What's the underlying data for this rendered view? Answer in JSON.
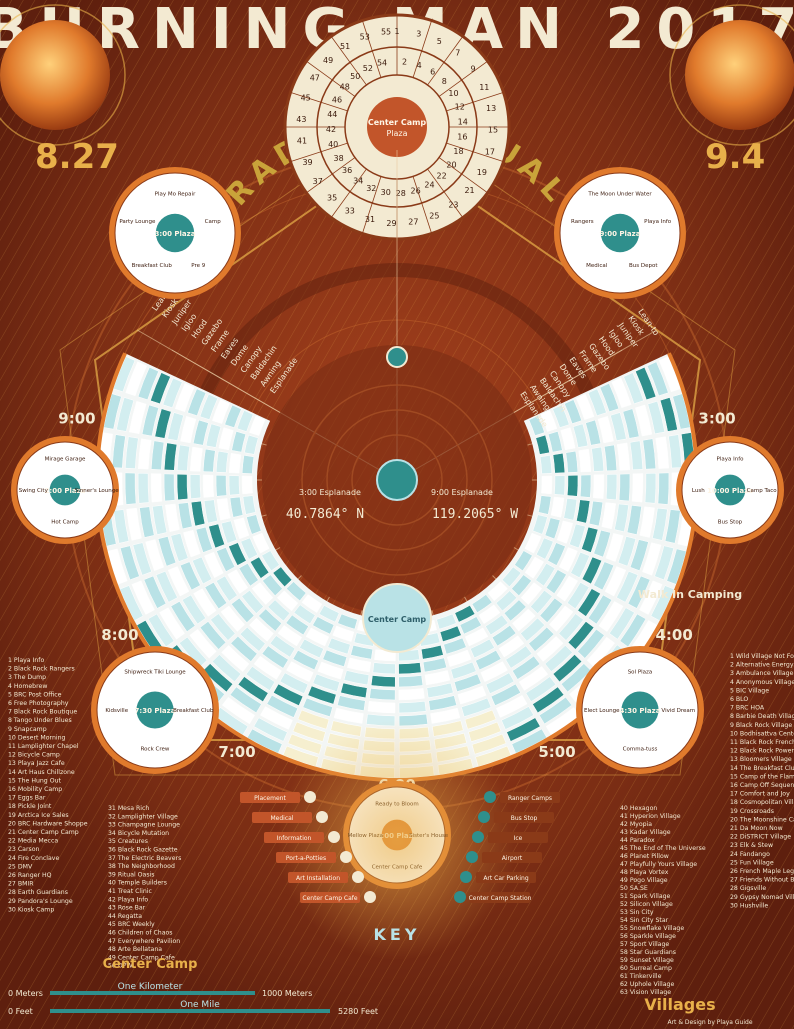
{
  "title": "BURNING MAN 2017",
  "theme": "RADICAL RITUAL",
  "dates": {
    "start": "8.27",
    "end": "9.4"
  },
  "coordinates": {
    "lat": "40.7864° N",
    "lon": "119.2065° W"
  },
  "center_camp": {
    "label": "Center Camp",
    "sublabel": "Plaza",
    "inner_numbers": [
      "1",
      "2",
      "3",
      "4",
      "5",
      "6",
      "7",
      "8",
      "9",
      "10",
      "11",
      "12",
      "13",
      "14",
      "15",
      "16",
      "17",
      "18",
      "19",
      "20",
      "21",
      "22",
      "23",
      "24",
      "25",
      "26",
      "27",
      "28",
      "29",
      "30",
      "31",
      "32",
      "33",
      "34",
      "35",
      "36",
      "37",
      "38",
      "39",
      "40",
      "41",
      "42",
      "43",
      "44",
      "45",
      "46",
      "47",
      "48",
      "49",
      "50",
      "51",
      "52",
      "53",
      "54",
      "55"
    ]
  },
  "clock_labels": [
    "2:00",
    "3:00",
    "4:00",
    "5:00",
    "6:00",
    "7:00",
    "8:00",
    "9:00",
    "10:00"
  ],
  "streets_left": [
    "Esplanade",
    "Awning",
    "Baldachin",
    "Canopy",
    "Dome",
    "Eaves",
    "Frame",
    "Gazebo",
    "Hood",
    "Igloo",
    "Juniper",
    "Kiosk",
    "Lean-to"
  ],
  "streets_right": [
    "Esplanade",
    "Awning",
    "Baldachin",
    "Canopy",
    "Dome",
    "Eaves",
    "Frame",
    "Gazebo",
    "Hood",
    "Igloo",
    "Juniper",
    "Kiosk",
    "Lean-to"
  ],
  "esplanade_labels": {
    "left": "3:00 Esplanade",
    "right": "9:00 Esplanade"
  },
  "plazas": [
    {
      "id": "plaza-300",
      "label": "3:00 Plaza",
      "entries": [
        "Play Mo Repair",
        "Camp",
        "Pre 9",
        "Breakfast Club",
        "Party Lounge"
      ]
    },
    {
      "id": "plaza-900",
      "label": "9:00 Plaza",
      "entries": [
        "The Moon Under Water",
        "Playa Info",
        "Bus Depot",
        "Medical",
        "Rangers"
      ]
    },
    {
      "id": "plaza-200",
      "label": "2:00 Plaza",
      "entries": [
        "Mirage Garage",
        "Sinner's Lounge",
        "Hot Camp",
        "Swing City"
      ]
    },
    {
      "id": "plaza-1000",
      "label": "10:00 Plaza",
      "entries": [
        "Playa Info",
        "Camp Taco",
        "Bus Stop",
        "Lush"
      ]
    },
    {
      "id": "plaza-730",
      "label": "7:30 Plaza",
      "entries": [
        "Shipwreck Tiki Lounge",
        "Breakfast Club",
        "Rock Crew",
        "Kidsville"
      ]
    },
    {
      "id": "plaza-430",
      "label": "4:30 Plaza",
      "entries": [
        "Sol Plaza",
        "Vivid Dream",
        "Comma-tuss",
        "Elect Lounge"
      ]
    },
    {
      "id": "plaza-600",
      "label": "6:00 Plaza",
      "entries": [
        "Ready to Bloom",
        "Sister's House",
        "Center Camp Cafe",
        "Mellow Plaza"
      ]
    }
  ],
  "key": {
    "title": "KEY",
    "items_left": [
      "Placement",
      "Medical",
      "Information",
      "Port-a-Potties",
      "Art Installation",
      "Center Camp Cafe"
    ],
    "items_right": [
      "Ranger Camps",
      "Bus Stop",
      "Ice",
      "Airport",
      "Art Car Parking",
      "Center Camp Station"
    ]
  },
  "walk_in_label": "Walk In Camping",
  "center_camp_section_label": "Center Camp",
  "villages_label": "Villages",
  "left_list": [
    "1 Playa Info",
    "2 Black Rock Rangers",
    "3 The Dump",
    "4 Homebrew",
    "5 BRC Post Office",
    "6 Free Photography",
    "7 Black Rock Boutique",
    "8 Tango Under Blues",
    "9 Snapcamp",
    "10 Desert Morning",
    "11 Lamplighter Chapel",
    "12 Bicycle Camp",
    "13 Playa Jazz Cafe",
    "14 Art Haus Chillzone",
    "15 The Hung Out",
    "16 Mobility Camp",
    "17 Eggs Bar",
    "18 Pickle Joint",
    "19 Arctica Ice Sales",
    "20 BRC Hardware Shoppe",
    "21 Center Camp Camp",
    "22 Media Mecca",
    "23 Carson",
    "24 Fire Conclave",
    "25 DMV",
    "26 Ranger HQ",
    "27 BMIR",
    "28 Earth Guardians",
    "29 Pandora's Lounge",
    "30 Kiosk Camp"
  ],
  "mid_list": [
    "31 Mesa Rich",
    "32 Lamplighter Village",
    "33 Champagne Lounge",
    "34 Bicycle Mutation",
    "35 Creatures",
    "36 Black Rock Gazette",
    "37 The Electric Beavers",
    "38 The Neighborhood",
    "39 Ritual Oasis",
    "40 Temple Builders",
    "41 Treat Clinic",
    "42 Playa Info",
    "43 Rose Bar",
    "44 Regatta",
    "45 BRC Weekly",
    "46 Children of Chaos",
    "47 Everywhere Pavilion",
    "48 Arte Bellatana",
    "49 Center Camp Cafe",
    "50 DPW"
  ],
  "right_list": [
    "1 Wild Village Not Found",
    "2 Alternative Energy Zone",
    "3 Ambulance Village",
    "4 Anonymous Village",
    "5 BIC Village",
    "6 BLO",
    "7 BRC HOA",
    "8 Barbie Death Village",
    "9 Black Rock Village",
    "10 Bodhisattva Center",
    "11 Black Rock French Quarter",
    "12 Black Rock Power CO-OP",
    "13 Bloomers Village",
    "14 The Breakfast Club",
    "15 Camp of the Flame",
    "16 Camp Off Sequence",
    "17 Comfort and Joy",
    "18 Cosmopolitan Village",
    "19 Crossroads",
    "20 The Moonshine Cafe",
    "21 Da Moon Now",
    "22 DiSTRICT Village",
    "23 Elk & Stew",
    "24 Fandango",
    "25 Fun Village",
    "26 French Maple Legends",
    "27 Friends Without Borders",
    "28 Gigsville",
    "29 Gypsy Nomad Village",
    "30 Hushville"
  ],
  "right_list2": [
    "40 Hexagon",
    "41 Hyperion Village",
    "42 Myopia",
    "43 Kadar Village",
    "44 Paradox",
    "45 The End of The Universe",
    "46 Planet Pillow",
    "47 Playfully Yours Village",
    "48 Playa Vortex",
    "49 Pogo Village",
    "50 SA.SE",
    "51 Spark Village",
    "52 Silicon Village",
    "53 Sin City",
    "54 Sin City Star",
    "55 Snowflake Village",
    "56 Sparkle Village",
    "57 Sport Village",
    "58 Star Guardians",
    "59 Sunset Village",
    "60 Surreal Camp",
    "61 Tinkerville",
    "62 Uphole Village",
    "63 Vision Village"
  ],
  "scale": {
    "km_label": "One Kilometer",
    "mile_label": "One Mile",
    "left_meters": "0 Meters",
    "right_meters": "1000 Meters",
    "left_feet": "0 Feet",
    "right_feet": "5280 Feet"
  },
  "credit": "Art & Design by Playa Guide",
  "colors": {
    "bg": "#7a2d14",
    "bg_dark": "#5e1f0e",
    "orange": "#e07a2c",
    "cream": "#f3ead2",
    "teal": "#2f8f8c",
    "light_teal": "#b9e2e6",
    "gold": "#e8b04a",
    "text_light": "#fff6e6"
  }
}
